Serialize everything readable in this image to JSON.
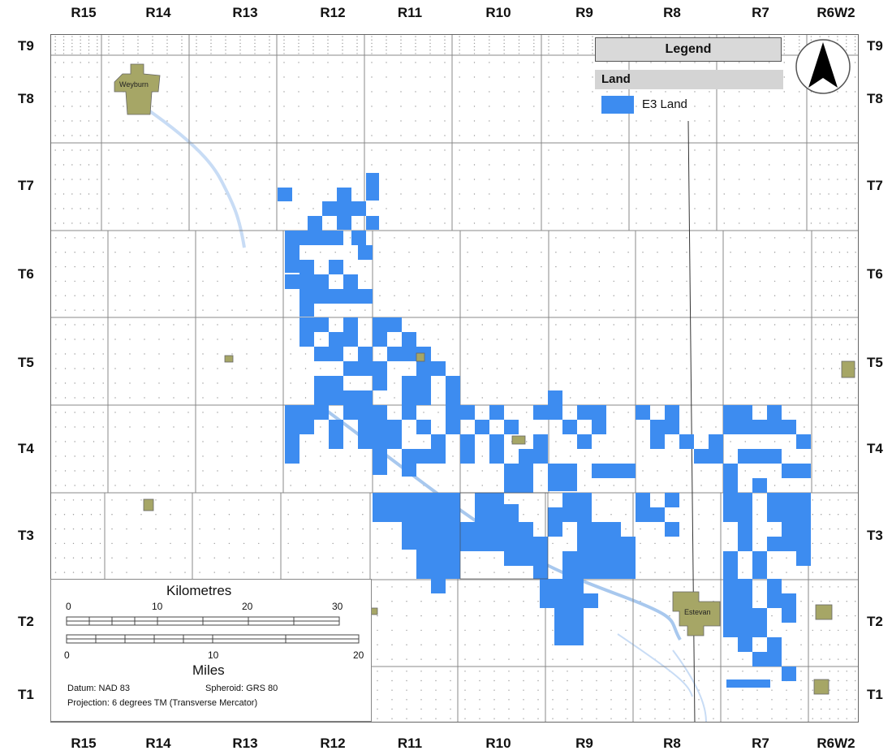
{
  "range_labels": [
    "R15",
    "R14",
    "R13",
    "R12",
    "R11",
    "R10",
    "R9",
    "R8",
    "R7",
    "R6W2"
  ],
  "township_labels": [
    "T9",
    "T8",
    "T7",
    "T6",
    "T5",
    "T4",
    "T3",
    "T2",
    "T1"
  ],
  "legend": {
    "title": "Legend",
    "category": "Land",
    "item_label": "E3 Land",
    "item_color": "#3d8cf0"
  },
  "towns": [
    {
      "name": "Weyburn",
      "color": "#a6a666"
    },
    {
      "name": "Estevan",
      "color": "#a6a666"
    }
  ],
  "scale": {
    "km_title": "Kilometres",
    "km_ticks": [
      "0",
      "10",
      "20",
      "30"
    ],
    "mi_title": "Miles",
    "mi_ticks": [
      "0",
      "10",
      "20"
    ],
    "datum": "Datum: NAD 83",
    "spheroid": "Spheroid: GRS 80",
    "projection": "Projection: 6 degrees TM (Transverse Mercator)"
  },
  "colors": {
    "land": "#3d8cf0",
    "town": "#a6a666",
    "water": "#c8dcf5",
    "grid": "#888888"
  },
  "north_arrow_icon": "north-arrow-icon"
}
